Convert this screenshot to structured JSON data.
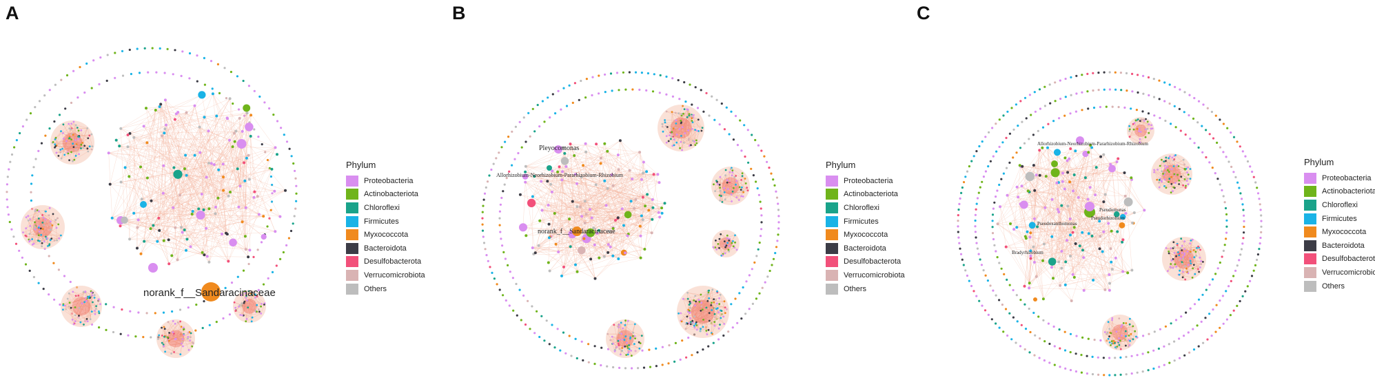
{
  "panels": [
    {
      "letter": "A",
      "annotations": [
        "norank_f__Sandaracinaceae"
      ],
      "legend": {
        "title": "Phylum",
        "items": [
          "Proteobacteria",
          "Actinobacteriota",
          "Chloroflexi",
          "Firmicutes",
          "Myxococcota",
          "Bacteroidota",
          "Desulfobacterota",
          "Verrucomicrobiota",
          "Others"
        ]
      }
    },
    {
      "letter": "B",
      "annotations": [
        "Pleyocomonas",
        "Allorhizobium-Neorhizobium-Pararhizobium-Rhizobium",
        "norank_f__Sandaracinaceae"
      ],
      "legend": {
        "title": "Phylum",
        "items": [
          "Proteobacteria",
          "Actinobacteriota",
          "Chloroflexi",
          "Firmicutes",
          "Myxococcota",
          "Bacteroidota",
          "Desulfobacterota",
          "Verrucomicrobiota",
          "Others"
        ]
      }
    },
    {
      "letter": "C",
      "annotations": [
        "Allorhizobium-Neorhizobium-Pararhizobium-Rhizobium",
        "Pseudomonas",
        "Pseudorhizobium",
        "Pseudoxanthomonas",
        "Bradyrhizobium"
      ],
      "legend": {
        "title": "Phylum",
        "items": [
          "Proteobacteria",
          "Actinobacteriota",
          "Chloroflexi",
          "Firmicutes",
          "Myxococcota",
          "Bacteroidota",
          "Desulfobacterota",
          "Verrucomicrobiota",
          "Others"
        ]
      }
    }
  ],
  "colors": {
    "phylum": [
      "#d98ef0",
      "#6fb41b",
      "#1aa38a",
      "#1ab3e6",
      "#f08a1e",
      "#3c3c46",
      "#f2507a",
      "#d9b3b3",
      "#bdbdbd"
    ],
    "edge": "#f3b29b",
    "cluster_core": "#ef4f43"
  }
}
